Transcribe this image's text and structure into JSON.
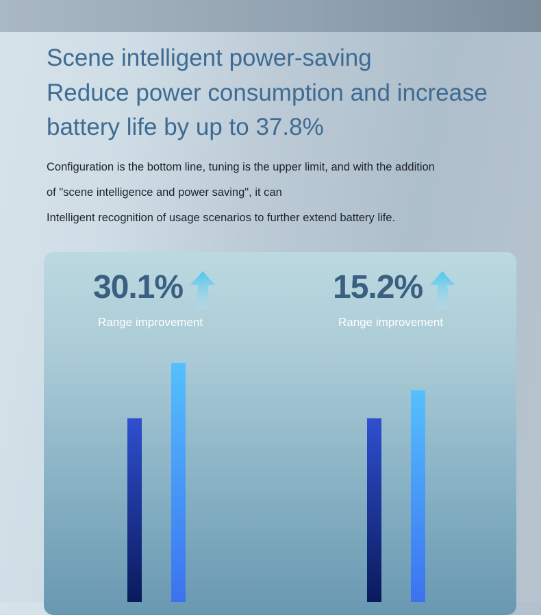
{
  "header": {
    "title_line1": "Scene intelligent power-saving",
    "title_line2": "Reduce power consumption and increase",
    "title_line3": "battery life by up to 37.8%"
  },
  "description": {
    "line1": "Configuration is the bottom line, tuning is the upper limit, and with the addition",
    "line2": "of \"scene intelligence and power saving\", it can",
    "line3": "Intelligent recognition of usage scenarios to further extend battery life."
  },
  "stats": [
    {
      "value": "30.1%",
      "caption": "Range improvement",
      "icon": "up-arrow-icon"
    },
    {
      "value": "15.2%",
      "caption": "Range improvement",
      "icon": "up-arrow-icon"
    }
  ],
  "colors": {
    "title": "#3f6b93",
    "stat_value": "#3a5f80",
    "bar_before_top": "#2f4fcf",
    "bar_before_bottom": "#0a1a5c",
    "bar_after_top": "#55c0ff",
    "bar_after_bottom": "#3b72f0",
    "arrow_top": "#4cc6ee",
    "arrow_bottom": "#b6dcec"
  },
  "chart_data": {
    "type": "bar",
    "groups": [
      {
        "improvement_percent": 30.1,
        "values": [
          1.0,
          1.301
        ]
      },
      {
        "improvement_percent": 15.2,
        "values": [
          1.0,
          1.152
        ]
      }
    ],
    "ylim": [
      0,
      1.301
    ],
    "title": "",
    "xlabel": "",
    "ylabel": "",
    "grid": false,
    "legend": "none"
  }
}
